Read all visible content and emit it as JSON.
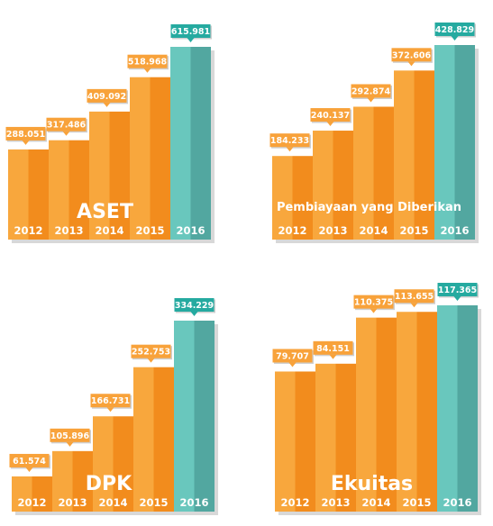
{
  "colors": {
    "bar_light": "#f8a73d",
    "bar_dark": "#f28c1d",
    "highlight_light": "#69c7bd",
    "highlight_dark": "#52a7a0",
    "label_orange": "#f8a23a",
    "label_teal": "#25aaa0",
    "shadow": "#d8d8d8"
  },
  "chart_data": [
    {
      "type": "bar",
      "title": "ASET",
      "categories": [
        "2012",
        "2013",
        "2014",
        "2015",
        "2016"
      ],
      "values": [
        288051,
        317486,
        409092,
        518968,
        615981
      ],
      "labels": [
        "288.051",
        "317.486",
        "409.092",
        "518.968",
        "615.981"
      ],
      "highlight": "2016",
      "grid": false
    },
    {
      "type": "bar",
      "title": "Pembiayaan yang Diberikan",
      "categories": [
        "2012",
        "2013",
        "2014",
        "2015",
        "2016"
      ],
      "values": [
        184233,
        240137,
        292874,
        372606,
        428829
      ],
      "labels": [
        "184.233",
        "240.137",
        "292.874",
        "372.606",
        "428.829"
      ],
      "highlight": "2016",
      "grid": false
    },
    {
      "type": "bar",
      "title": "DPK",
      "categories": [
        "2012",
        "2013",
        "2014",
        "2015",
        "2016"
      ],
      "values": [
        61574,
        105896,
        166731,
        252753,
        334229
      ],
      "labels": [
        "61.574",
        "105.896",
        "166.731",
        "252.753",
        "334.229"
      ],
      "highlight": "2016",
      "grid": false
    },
    {
      "type": "bar",
      "title": "Ekuitas",
      "categories": [
        "2012",
        "2013",
        "2014",
        "2015",
        "2016"
      ],
      "values": [
        79707,
        84151,
        110375,
        113655,
        117365
      ],
      "labels": [
        "79.707",
        "84.151",
        "110.375",
        "113.655",
        "117.365"
      ],
      "highlight": "2016",
      "grid": false
    }
  ]
}
